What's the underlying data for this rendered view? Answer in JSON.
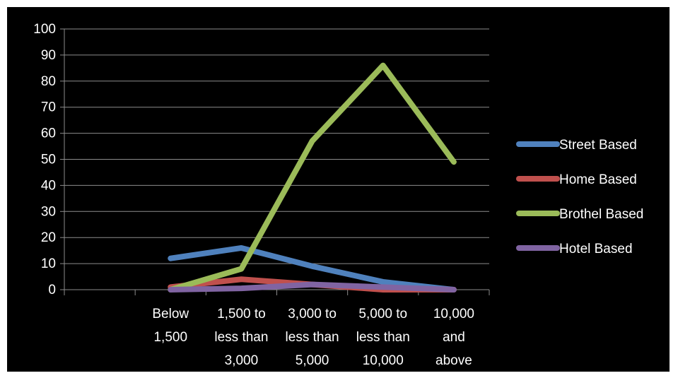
{
  "chart_data": {
    "type": "line",
    "categories": [
      [
        "Below",
        "1,500"
      ],
      [
        "1,500 to",
        "less than",
        "3,000"
      ],
      [
        "3,000 to",
        "less than",
        "5,000"
      ],
      [
        "5,000 to",
        "less than",
        "10,000"
      ],
      [
        "10,000",
        "and",
        "above"
      ]
    ],
    "ylim": [
      0,
      100
    ],
    "yticks": [
      0,
      10,
      20,
      30,
      40,
      50,
      60,
      70,
      80,
      90,
      100
    ],
    "grid": true,
    "legend_position": "right",
    "series": [
      {
        "name": "Street Based",
        "color": "#4f81bd",
        "values": [
          12,
          16,
          9,
          3,
          0
        ]
      },
      {
        "name": "Home Based",
        "color": "#c0504d",
        "values": [
          1,
          4,
          2,
          0,
          0
        ]
      },
      {
        "name": "Brothel Based",
        "color": "#9bbb59",
        "values": [
          0,
          8,
          57,
          86,
          49
        ]
      },
      {
        "name": "Hotel Based",
        "color": "#8064a2",
        "values": [
          0,
          0.5,
          2,
          1,
          0
        ]
      }
    ]
  }
}
